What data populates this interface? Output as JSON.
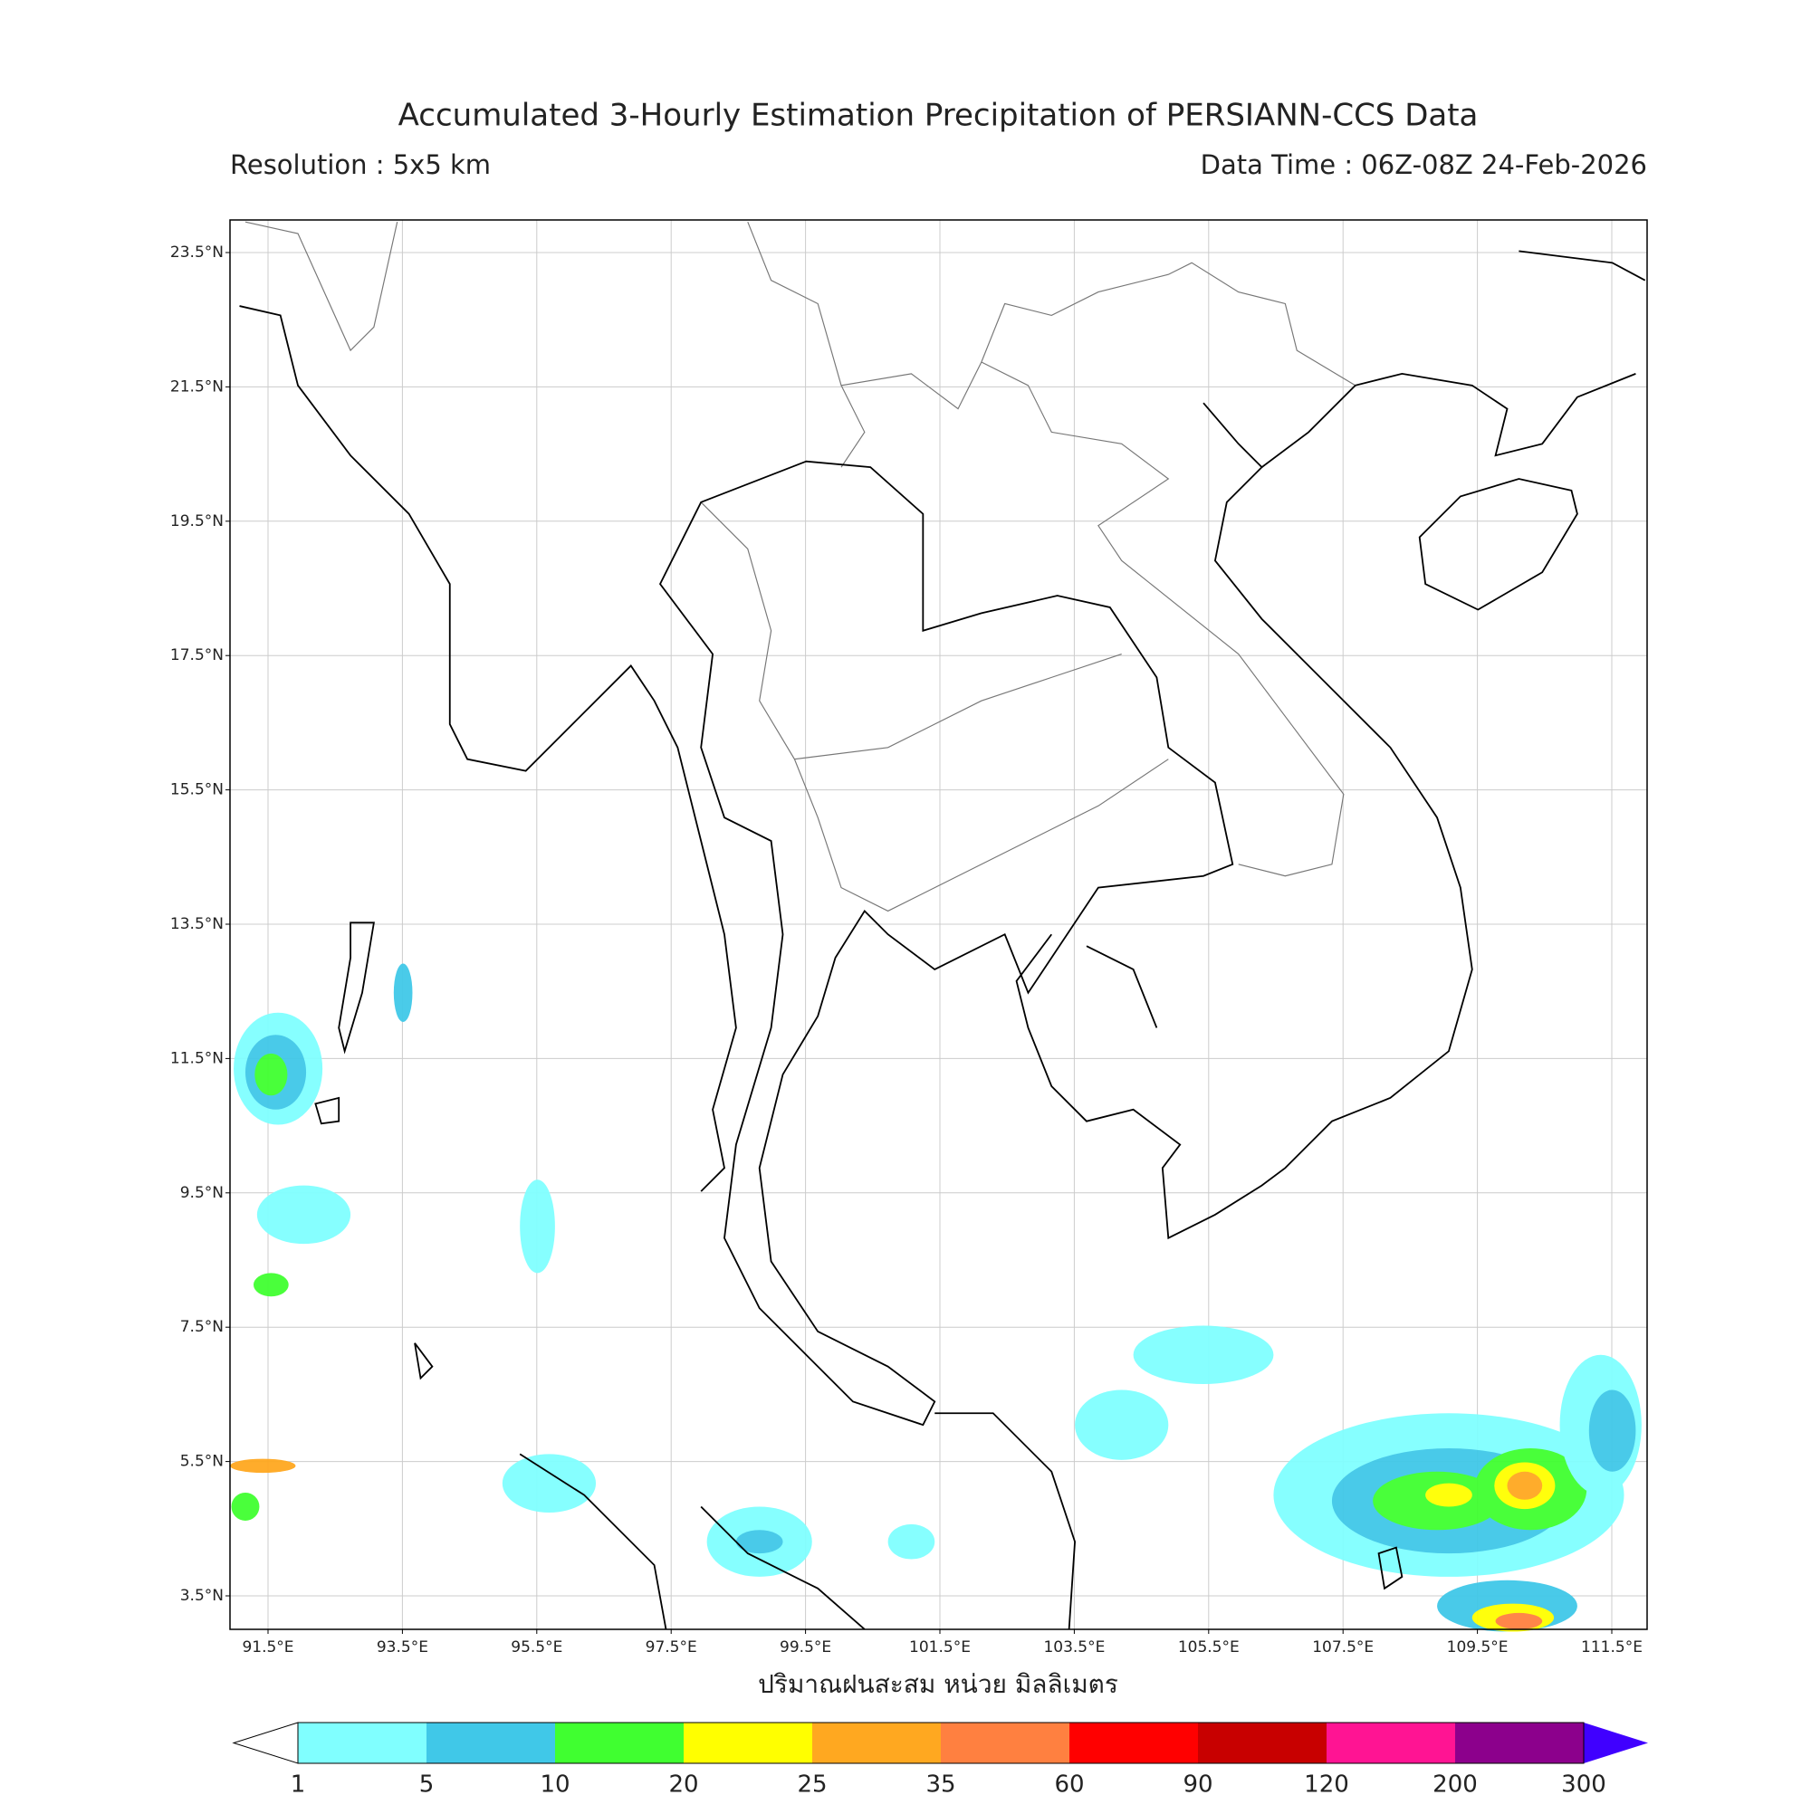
{
  "header": {
    "title": "Accumulated 3-Hourly Estimation Precipitation of PERSIANN-CCS Data",
    "resolution": "Resolution : 5x5 km",
    "data_time": "Data Time : 06Z-08Z 24-Feb-2026"
  },
  "map": {
    "lat_ticks": [
      "23.5°N",
      "21.5°N",
      "19.5°N",
      "17.5°N",
      "15.5°N",
      "13.5°N",
      "11.5°N",
      "9.5°N",
      "7.5°N",
      "5.5°N",
      "3.5°N"
    ],
    "lon_ticks": [
      "91.5°E",
      "93.5°E",
      "95.5°E",
      "97.5°E",
      "99.5°E",
      "101.5°E",
      "103.5°E",
      "105.5°E",
      "107.5°E",
      "109.5°E",
      "111.5°E"
    ],
    "x_label": "ปริมาณฝนสะสม หน่วย มิลลิเมตร"
  },
  "colorbar": {
    "boundaries": [
      1,
      5,
      10,
      20,
      25,
      35,
      60,
      90,
      120,
      200,
      300
    ],
    "colors": [
      "#80ffff",
      "#40c8e8",
      "#40ff30",
      "#ffff00",
      "#ffa820",
      "#ff8040",
      "#ff0000",
      "#c80000",
      "#ff1493",
      "#8c008c"
    ],
    "under_color": "#ffffff",
    "over_color": "#4000ff"
  }
}
